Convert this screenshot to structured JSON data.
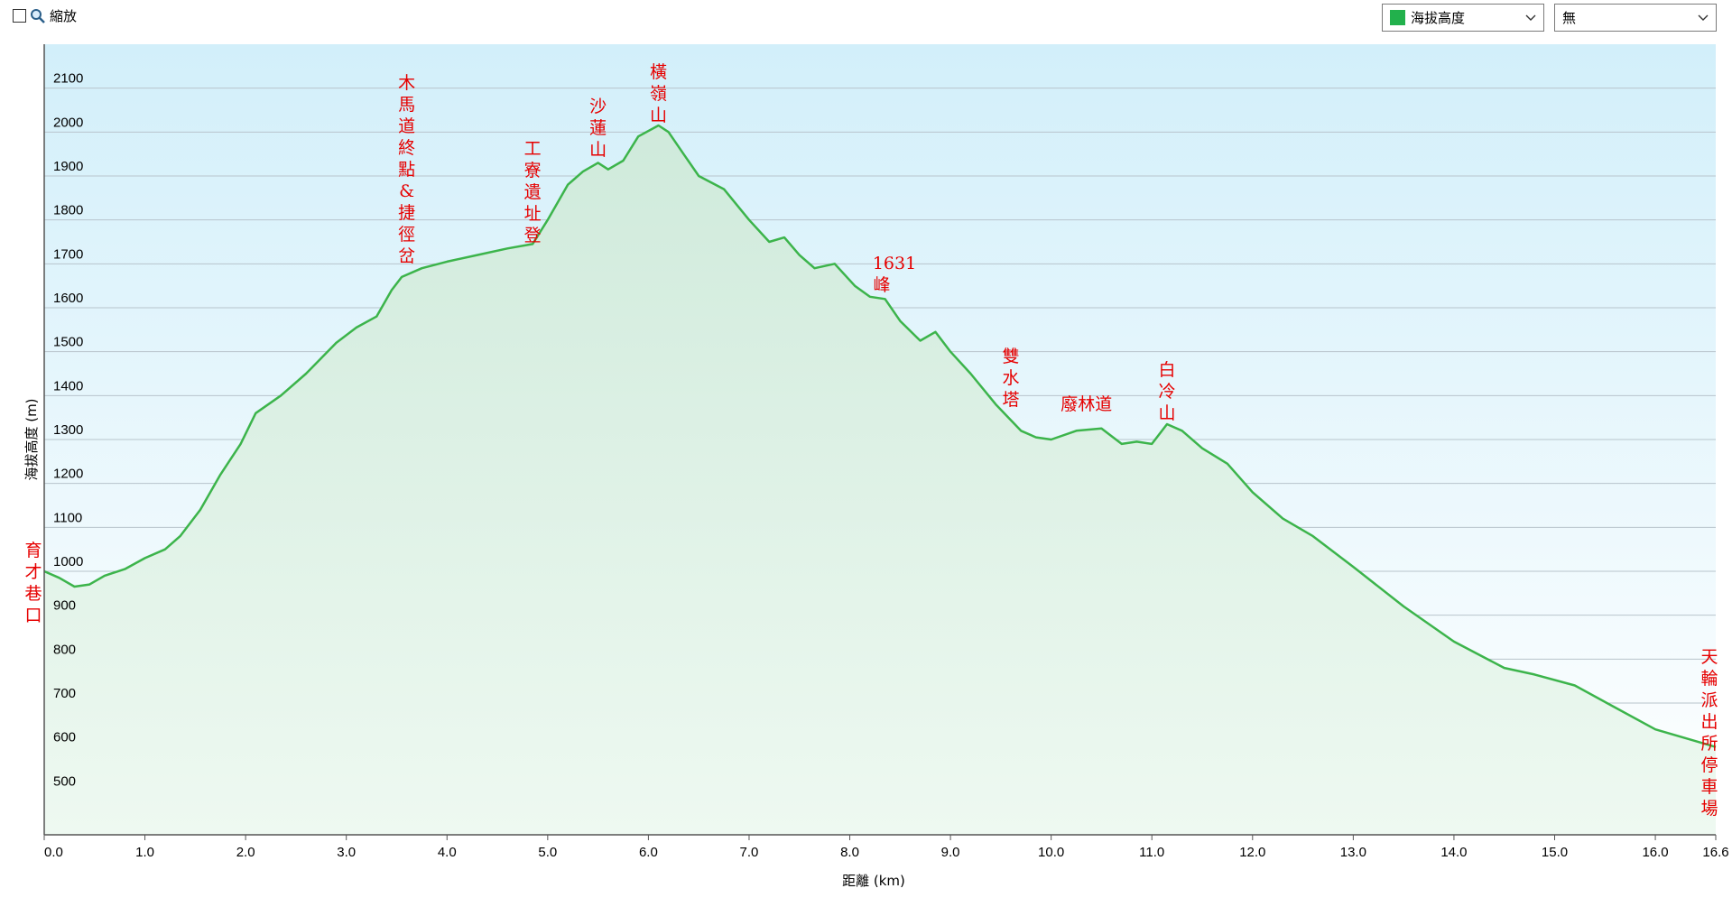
{
  "toolbar": {
    "zoom_label": "縮放",
    "series_select": {
      "label": "海拔高度",
      "color": "#22b14c"
    },
    "compare_select": {
      "label": "無"
    }
  },
  "chart_data": {
    "type": "area",
    "xlabel": "距離 (km)",
    "ylabel": "海拔高度 (m)",
    "xlim": [
      0,
      16.6
    ],
    "ylim": [
      400,
      2200
    ],
    "x_ticks": [
      0.0,
      1.0,
      2.0,
      3.0,
      4.0,
      5.0,
      6.0,
      7.0,
      8.0,
      9.0,
      10.0,
      11.0,
      12.0,
      13.0,
      14.0,
      15.0,
      16.0,
      16.6
    ],
    "x_tick_labels": [
      "0.0",
      "1.0",
      "2.0",
      "3.0",
      "4.0",
      "5.0",
      "6.0",
      "7.0",
      "8.0",
      "9.0",
      "10.0",
      "11.0",
      "12.0",
      "13.0",
      "14.0",
      "15.0",
      "16.0",
      "16.6"
    ],
    "y_ticks": [
      500,
      600,
      700,
      800,
      900,
      1000,
      1100,
      1200,
      1300,
      1400,
      1500,
      1600,
      1700,
      1800,
      1900,
      2000,
      2100
    ],
    "grid": true,
    "line_color": "#3cb44b",
    "series": [
      {
        "x": [
          0,
          0.15,
          0.3,
          0.45,
          0.6,
          0.8,
          1.0,
          1.2,
          1.35,
          1.55,
          1.75,
          1.95,
          2.1,
          2.35,
          2.6,
          2.9,
          3.1,
          3.3,
          3.45,
          3.55,
          3.75,
          4.0,
          4.3,
          4.6,
          4.85,
          5.0,
          5.2,
          5.35,
          5.5,
          5.6,
          5.75,
          5.9,
          6.1,
          6.2,
          6.35,
          6.5,
          6.75,
          7.0,
          7.2,
          7.35,
          7.5,
          7.65,
          7.85,
          8.05,
          8.2,
          8.35,
          8.5,
          8.7,
          8.85,
          9.0,
          9.2,
          9.45,
          9.7,
          9.85,
          10.0,
          10.25,
          10.5,
          10.7,
          10.85,
          11.0,
          11.15,
          11.3,
          11.5,
          11.75,
          12.0,
          12.3,
          12.6,
          13.0,
          13.5,
          14.0,
          14.5,
          14.8,
          15.2,
          15.6,
          16.0,
          16.6
        ],
        "y": [
          1000,
          985,
          965,
          970,
          990,
          1005,
          1030,
          1050,
          1080,
          1140,
          1220,
          1290,
          1360,
          1400,
          1450,
          1520,
          1555,
          1580,
          1640,
          1670,
          1690,
          1705,
          1720,
          1735,
          1745,
          1800,
          1880,
          1910,
          1930,
          1915,
          1935,
          1990,
          2015,
          2000,
          1950,
          1900,
          1870,
          1800,
          1750,
          1760,
          1720,
          1690,
          1700,
          1650,
          1625,
          1620,
          1570,
          1525,
          1545,
          1500,
          1450,
          1380,
          1320,
          1305,
          1300,
          1320,
          1325,
          1290,
          1295,
          1290,
          1335,
          1320,
          1280,
          1245,
          1180,
          1120,
          1080,
          1010,
          920,
          840,
          780,
          765,
          740,
          690,
          640,
          600
        ]
      }
    ],
    "annotations": [
      {
        "text": "育才巷口",
        "x": 0.0,
        "y": 1000
      },
      {
        "text": "木馬道終點&捷徑岔",
        "x": 3.6,
        "y": 1680
      },
      {
        "text": "工寮遺址登",
        "x": 4.85,
        "y": 1745
      },
      {
        "text": "沙蓮山",
        "x": 5.5,
        "y": 1940
      },
      {
        "text": "橫嶺山",
        "x": 6.1,
        "y": 2015
      },
      {
        "text": "1631峰",
        "x": 8.3,
        "y": 1631
      },
      {
        "text": "雙水塔",
        "x": 9.6,
        "y": 1380
      },
      {
        "text": "廢林道",
        "x": 10.35,
        "y": 1320
      },
      {
        "text": "白冷山",
        "x": 11.15,
        "y": 1335
      },
      {
        "text": "天輪派出所停車場",
        "x": 16.6,
        "y": 600
      }
    ]
  }
}
